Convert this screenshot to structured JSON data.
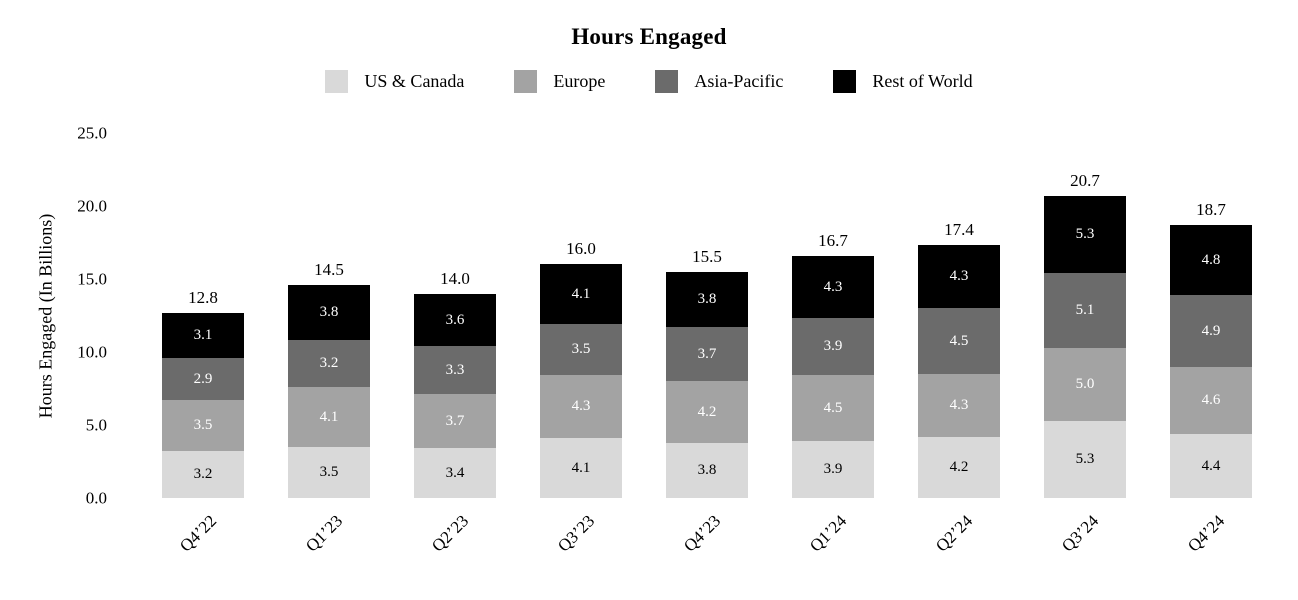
{
  "chart_data": {
    "type": "bar",
    "stacked": true,
    "title": "Hours Engaged",
    "ylabel": "Hours Engaged (In Billions)",
    "xlabel": "",
    "categories": [
      "Q4’22",
      "Q1’23",
      "Q2’23",
      "Q3’23",
      "Q4’23",
      "Q1’24",
      "Q2’24",
      "Q3’24",
      "Q4’24"
    ],
    "series": [
      {
        "name": "US & Canada",
        "color": "#d9d9d9",
        "label_color": "#000000",
        "values": [
          3.2,
          3.5,
          3.4,
          4.1,
          3.8,
          3.9,
          4.2,
          5.3,
          4.4
        ]
      },
      {
        "name": "Europe",
        "color": "#a3a3a3",
        "label_color": "#ffffff",
        "values": [
          3.5,
          4.1,
          3.7,
          4.3,
          4.2,
          4.5,
          4.3,
          5.0,
          4.6
        ]
      },
      {
        "name": "Asia-Pacific",
        "color": "#6b6b6b",
        "label_color": "#ffffff",
        "values": [
          2.9,
          3.2,
          3.3,
          3.5,
          3.7,
          3.9,
          4.5,
          5.1,
          4.9
        ]
      },
      {
        "name": "Rest of World",
        "color": "#000000",
        "label_color": "#ffffff",
        "values": [
          3.1,
          3.8,
          3.6,
          4.1,
          3.8,
          4.3,
          4.3,
          5.3,
          4.8
        ]
      }
    ],
    "totals": [
      "12.8",
      "14.5",
      "14.0",
      "16.0",
      "15.5",
      "16.7",
      "17.4",
      "20.7",
      "18.7"
    ],
    "yticks": [
      "0.0",
      "5.0",
      "10.0",
      "15.0",
      "20.0",
      "25.0"
    ],
    "ytick_values": [
      0,
      5,
      10,
      15,
      20,
      25
    ],
    "ylim": [
      0,
      25
    ],
    "legend_position": "top",
    "grid": false,
    "axis_lines": false
  }
}
